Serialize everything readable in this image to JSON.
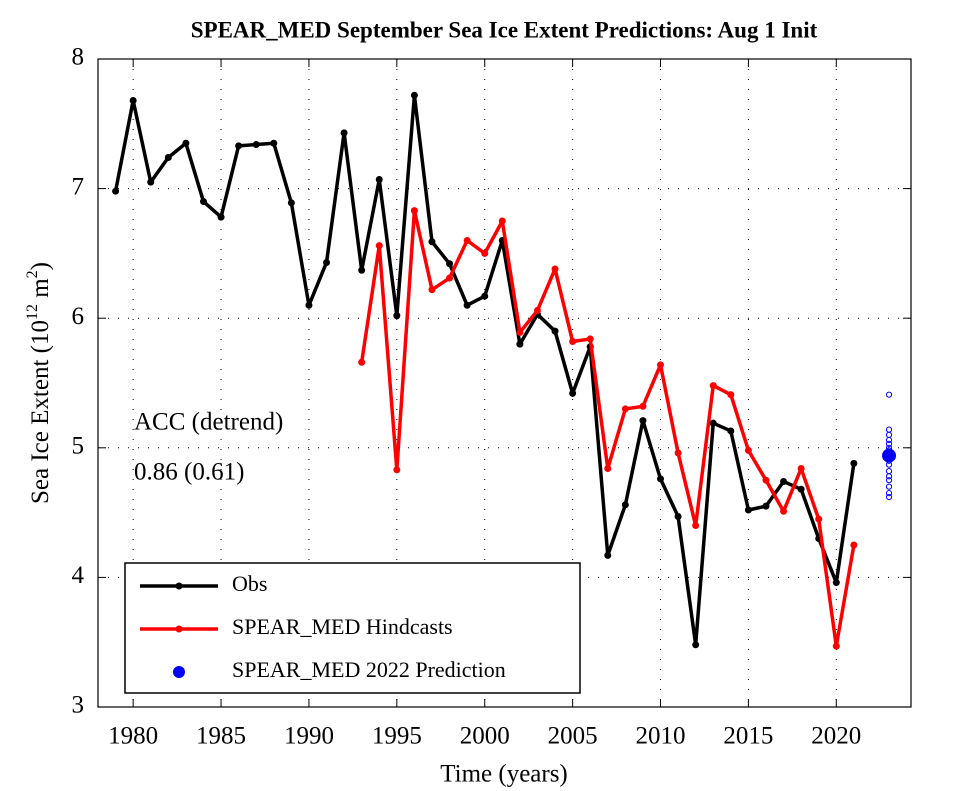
{
  "chart_data": {
    "type": "line",
    "title": "SPEAR_MED September Sea Ice Extent Predictions: Aug 1 Init",
    "xlabel": "Time (years)",
    "ylabel_parts": [
      "Sea Ice Extent (10",
      "12",
      " m",
      "2",
      ")"
    ],
    "annotations": [
      "ACC (detrend)",
      "0.86 (0.61)"
    ],
    "xlim": [
      1978,
      2024.25
    ],
    "ylim": [
      3,
      8
    ],
    "xticks": [
      1980,
      1985,
      1990,
      1995,
      2000,
      2005,
      2010,
      2015,
      2020
    ],
    "yticks": [
      3,
      4,
      5,
      6,
      7,
      8
    ],
    "grid": true,
    "legend": "lower left",
    "series": [
      {
        "name": "Obs",
        "color": "#000000",
        "x": [
          1979,
          1980,
          1981,
          1982,
          1983,
          1984,
          1985,
          1986,
          1987,
          1988,
          1989,
          1990,
          1991,
          1992,
          1993,
          1994,
          1995,
          1996,
          1997,
          1998,
          1999,
          2000,
          2001,
          2002,
          2003,
          2004,
          2005,
          2006,
          2007,
          2008,
          2009,
          2010,
          2011,
          2012,
          2013,
          2014,
          2015,
          2016,
          2017,
          2018,
          2019,
          2020,
          2021
        ],
        "values": [
          6.98,
          7.68,
          7.05,
          7.24,
          7.35,
          6.9,
          6.78,
          7.33,
          7.34,
          7.35,
          6.89,
          6.1,
          6.43,
          7.43,
          6.37,
          7.07,
          6.02,
          7.72,
          6.59,
          6.42,
          6.1,
          6.17,
          6.6,
          5.8,
          6.03,
          5.9,
          5.42,
          5.78,
          4.17,
          4.56,
          5.21,
          4.76,
          4.47,
          3.48,
          5.19,
          5.13,
          4.52,
          4.55,
          4.74,
          4.68,
          4.3,
          3.96,
          4.88
        ]
      },
      {
        "name": "SPEAR_MED Hindcasts",
        "color": "#ff0000",
        "x": [
          1993,
          1994,
          1995,
          1996,
          1997,
          1998,
          1999,
          2000,
          2001,
          2002,
          2003,
          2004,
          2005,
          2006,
          2007,
          2008,
          2009,
          2010,
          2011,
          2012,
          2013,
          2014,
          2015,
          2016,
          2017,
          2018,
          2019,
          2020,
          2021
        ],
        "values": [
          5.66,
          6.56,
          4.83,
          6.83,
          6.22,
          6.31,
          6.6,
          6.5,
          6.75,
          5.89,
          6.06,
          6.38,
          5.82,
          5.84,
          4.84,
          5.3,
          5.32,
          5.64,
          4.96,
          4.4,
          5.48,
          5.41,
          4.98,
          4.75,
          4.51,
          4.84,
          4.45,
          3.47,
          4.25
        ]
      },
      {
        "name": "SPEAR_MED 2022 Prediction",
        "color": "#0000ff",
        "x": [
          2023
        ],
        "values": [
          4.94
        ]
      }
    ],
    "ensemble": {
      "color": "#0000ff",
      "x": 2023,
      "values": [
        5.41,
        5.14,
        5.1,
        5.06,
        5.03,
        5.0,
        4.98,
        4.96,
        4.93,
        4.9,
        4.87,
        4.82,
        4.78,
        4.75,
        4.7,
        4.65,
        4.62
      ]
    }
  }
}
